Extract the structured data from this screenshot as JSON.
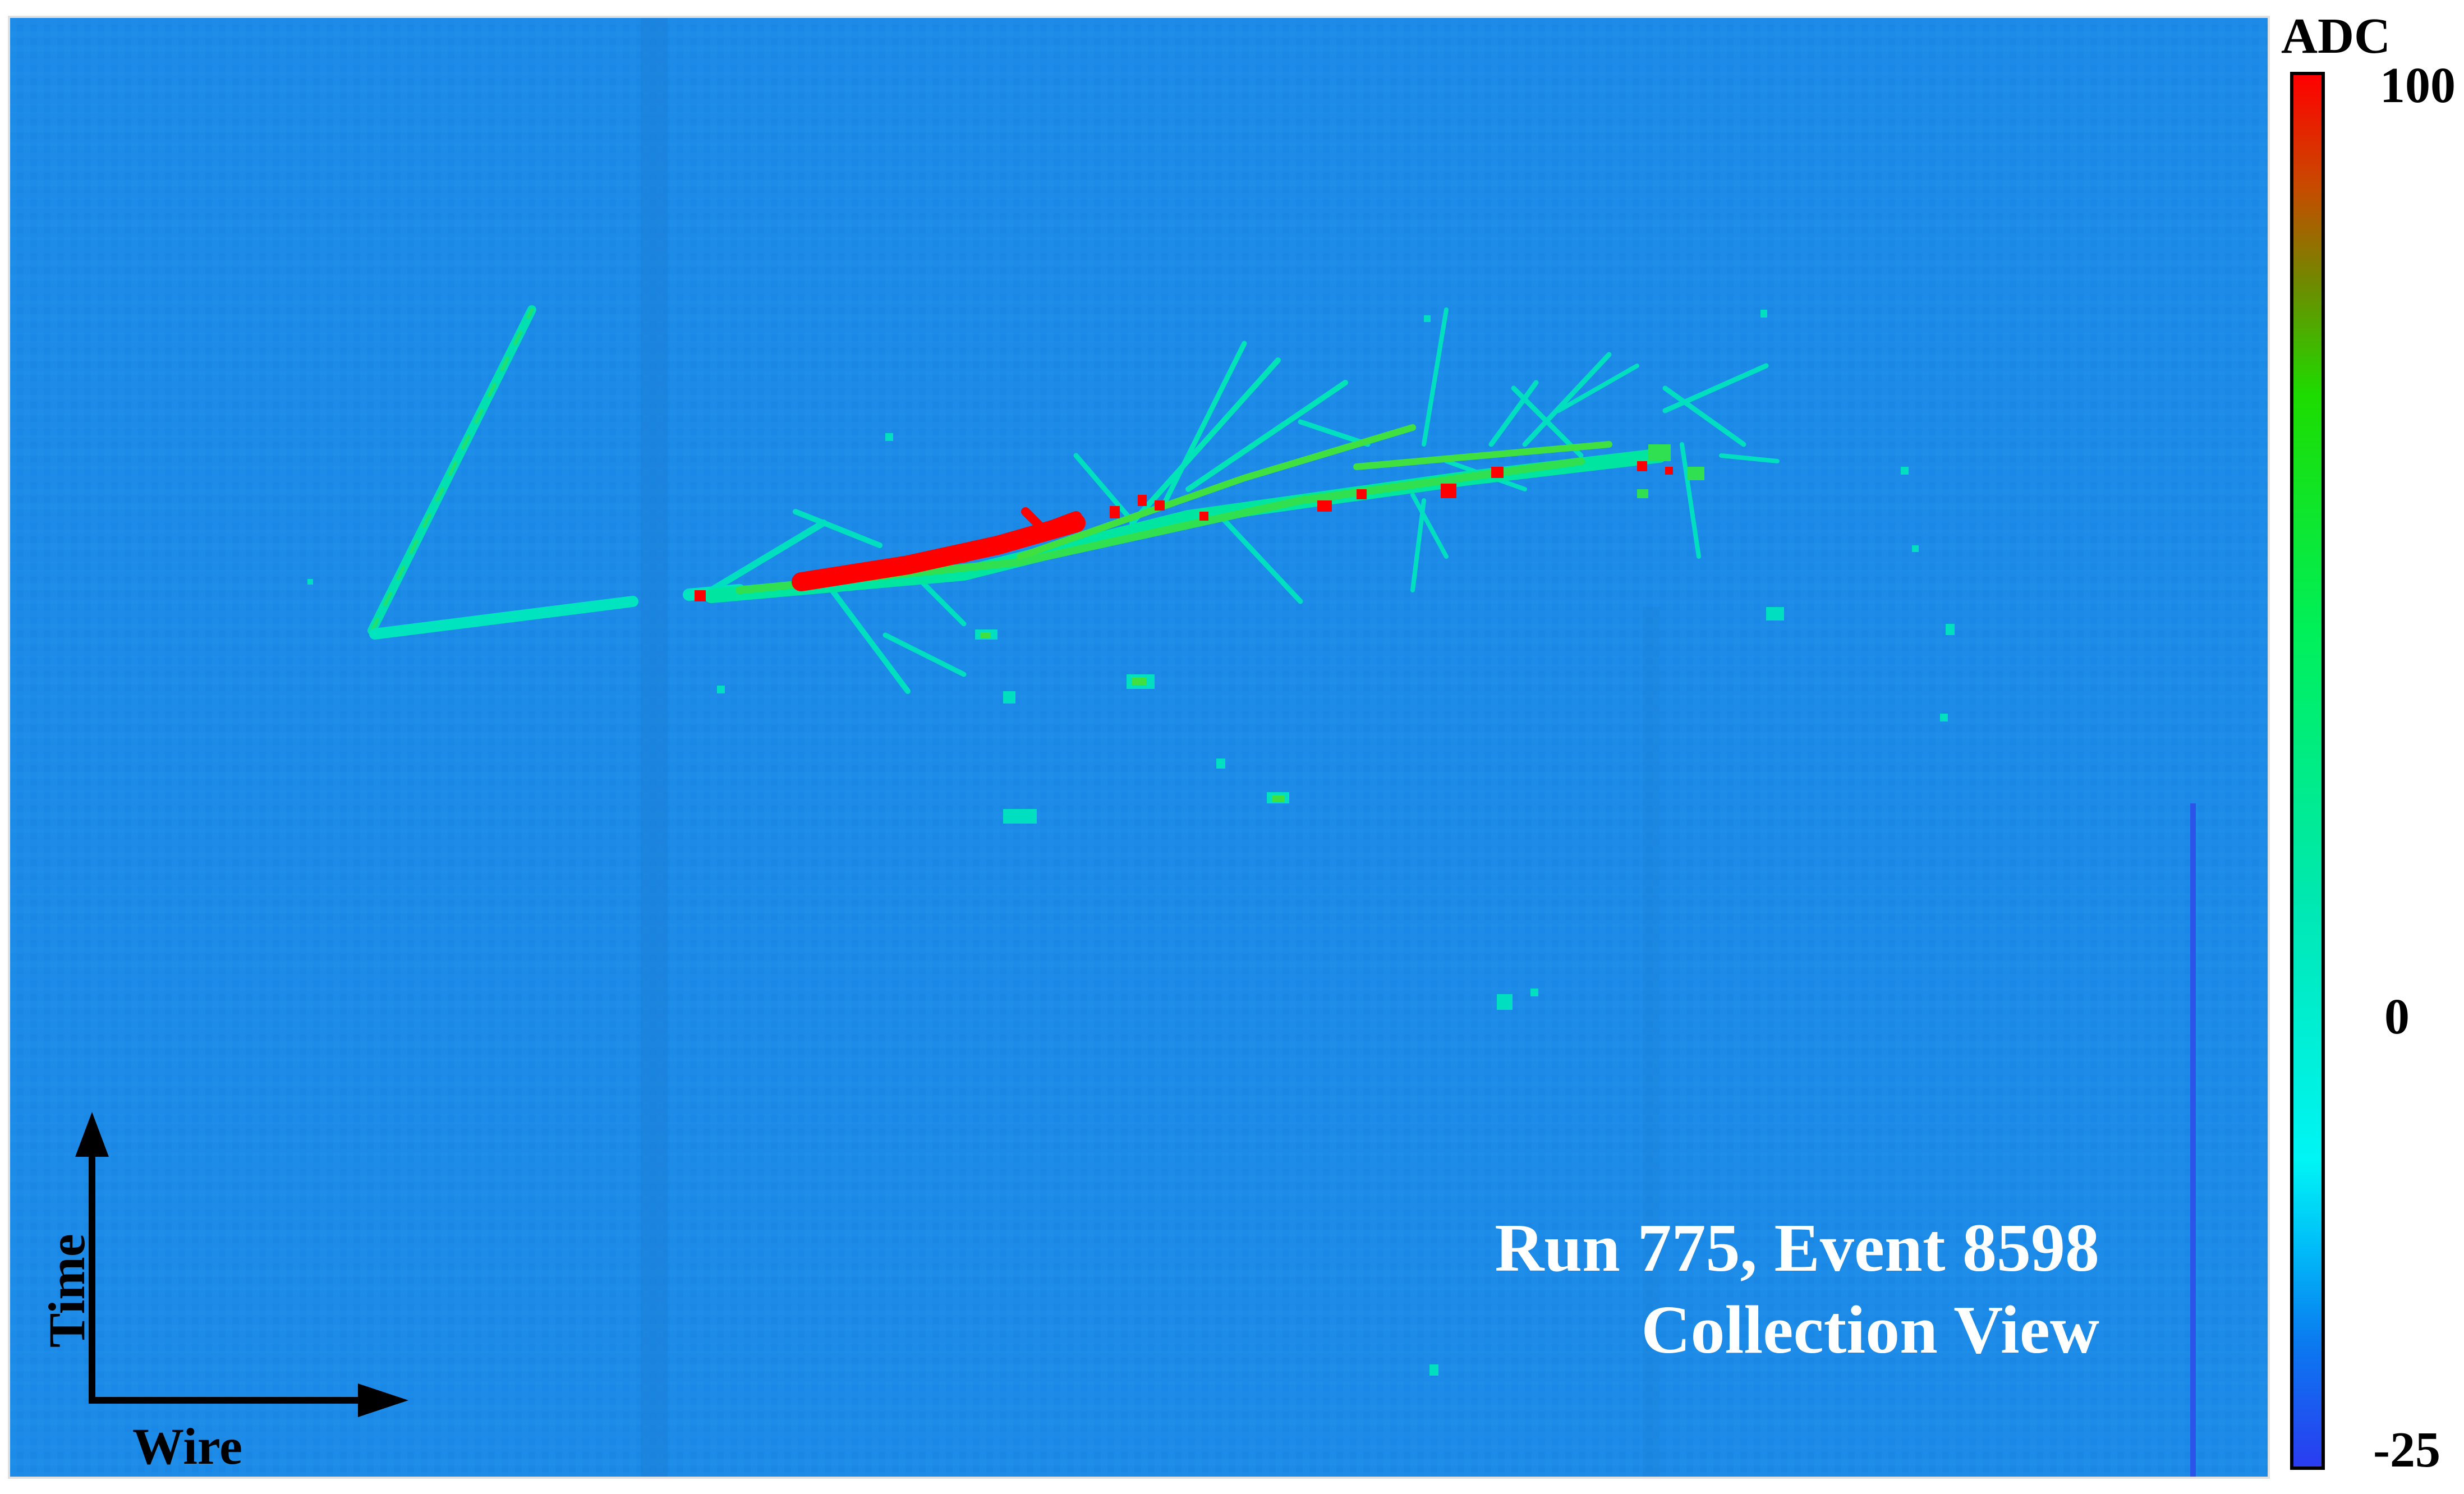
{
  "title": {
    "line1": "Run 775, Event 8598",
    "line2": "Collection View"
  },
  "axes": {
    "x_label": "Wire",
    "y_label": "Time"
  },
  "colorbar": {
    "title": "ADC",
    "max_label": "100",
    "mid_label": "0",
    "min_label": "-25",
    "range": [
      -25,
      100
    ]
  },
  "colors": {
    "background": "#1c8ce8",
    "track_low": "#00e8c8",
    "track_mid": "#20e060",
    "track_high": "#ff0000",
    "axis": "#000000",
    "label": "#ffffff"
  }
}
